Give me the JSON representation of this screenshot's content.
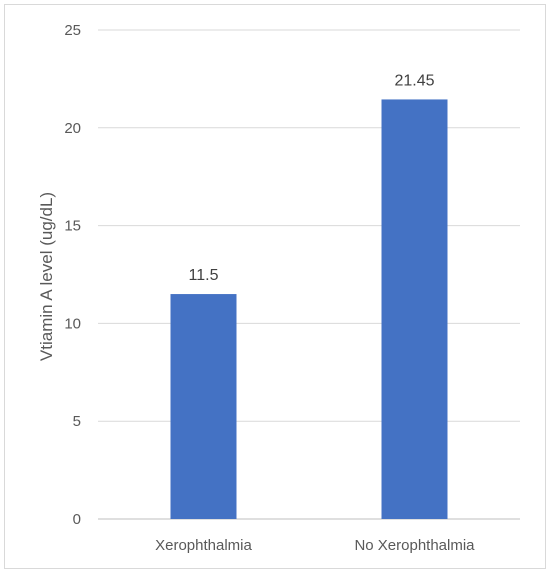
{
  "chart_data": {
    "type": "bar",
    "categories": [
      "Xerophthalmia",
      "No Xerophthalmia"
    ],
    "values": [
      11.5,
      21.45
    ],
    "data_labels": [
      "11.5",
      "21.45"
    ],
    "ylabel": "Vtiamin A level (ug/dL)",
    "xlabel": "",
    "ylim": [
      0,
      25
    ],
    "yticks": [
      0,
      5,
      10,
      15,
      20,
      25
    ],
    "grid": true,
    "legend": "none",
    "colors": {
      "bar": "#4472C4",
      "grid": "#d9d9d9",
      "axis": "#bfbfbf"
    }
  }
}
